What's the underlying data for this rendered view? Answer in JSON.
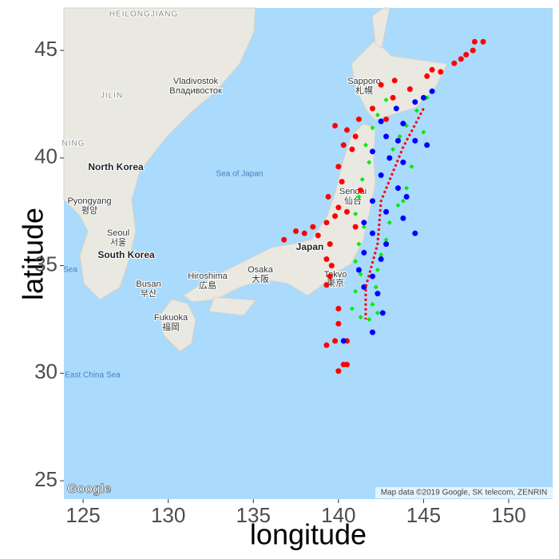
{
  "chart_data": {
    "type": "scatter",
    "xlabel": "longitude",
    "ylabel": "latitude",
    "xlim": [
      123.87,
      152.58
    ],
    "ylim": [
      24.15,
      46.97
    ],
    "xticks": [
      125,
      130,
      135,
      140,
      145,
      150
    ],
    "yticks": [
      25,
      30,
      35,
      40,
      45
    ],
    "series": [
      {
        "color": "#ff0000",
        "marker": "circle",
        "x": [
          148.5,
          148.0,
          147.9,
          147.5,
          147.2,
          146.8,
          146.0,
          145.5,
          145.2,
          144.2,
          143.3,
          142.5,
          143.2,
          142.0,
          141.0,
          139.8,
          140.3,
          140.8,
          140.0,
          140.2,
          139.4,
          140.0,
          139.8,
          139.3,
          138.5,
          138.0,
          137.5,
          136.8,
          138.8,
          139.5,
          139.3,
          139.6,
          139.5,
          139.3,
          140.0,
          140.0,
          139.8,
          139.3,
          140.5,
          140.3,
          140.0,
          140.5,
          141.0,
          140.5,
          141.3,
          142.8,
          140.5,
          141.2
        ],
        "values": [
          45.4,
          45.4,
          45.0,
          44.8,
          44.6,
          44.4,
          44.0,
          44.1,
          43.8,
          43.2,
          43.6,
          43.4,
          42.8,
          42.3,
          41.0,
          41.5,
          40.6,
          40.4,
          39.6,
          38.9,
          38.2,
          37.7,
          37.3,
          37.0,
          36.8,
          36.5,
          36.6,
          36.2,
          36.4,
          36.0,
          35.3,
          35.0,
          34.5,
          34.1,
          33.0,
          32.3,
          31.5,
          31.3,
          31.5,
          30.4,
          30.1,
          30.4,
          36.8,
          37.5,
          38.5,
          41.8,
          41.3,
          41.8
        ]
      },
      {
        "color": "#00ee00",
        "marker": "diamond",
        "x": [
          142.8,
          142.3,
          142.0,
          141.6,
          141.8,
          141.4,
          141.2,
          141.0,
          141.5,
          141.2,
          141.0,
          141.3,
          141.0,
          140.8,
          141.3,
          141.8,
          145.2,
          144.6,
          144.0,
          143.6,
          143.2,
          144.3,
          144.0,
          143.5,
          143.0,
          142.8,
          142.5,
          142.3,
          142.2,
          142.0,
          142.3,
          143.8,
          145.0
        ],
        "values": [
          42.7,
          42.0,
          41.4,
          40.6,
          39.8,
          39.0,
          38.2,
          37.4,
          36.8,
          36.0,
          35.2,
          34.6,
          33.8,
          33.0,
          32.6,
          32.5,
          42.8,
          42.2,
          41.5,
          41.0,
          40.4,
          39.6,
          38.6,
          37.8,
          37.0,
          36.2,
          35.5,
          34.8,
          34.0,
          33.2,
          32.8,
          38.0,
          41.2
        ]
      },
      {
        "color": "#0000ff",
        "marker": "circle",
        "x": [
          145.5,
          145.0,
          144.5,
          143.4,
          142.5,
          143.8,
          142.8,
          143.5,
          144.5,
          145.2,
          142.0,
          143.0,
          143.8,
          142.5,
          143.5,
          144.0,
          142.0,
          142.8,
          143.8,
          144.5,
          141.5,
          142.0,
          142.8,
          141.5,
          142.5,
          141.2,
          142.0,
          141.5,
          142.3,
          140.3,
          142.0,
          142.6
        ],
        "values": [
          43.1,
          42.8,
          42.6,
          42.3,
          41.7,
          41.6,
          41.0,
          40.8,
          40.8,
          40.6,
          40.3,
          40.0,
          39.8,
          39.2,
          38.6,
          38.2,
          38.0,
          37.5,
          37.2,
          36.5,
          37.0,
          36.5,
          36.0,
          35.6,
          35.3,
          34.8,
          34.5,
          34.0,
          33.7,
          31.5,
          31.9,
          32.8
        ]
      },
      {
        "color": "#ff0000",
        "marker": "dotted-line",
        "x": [
          145.0,
          143.8,
          142.5,
          142.3,
          141.6,
          141.6
        ],
        "values": [
          42.3,
          40.5,
          38.0,
          36.0,
          34.0,
          32.5
        ]
      }
    ],
    "map": {
      "labels": [
        "HEILONGJIANG",
        "Vladivostok",
        "Владивосток",
        "JILIN",
        "NING",
        "North Korea",
        "Pyongyang",
        "평양",
        "Seoul",
        "서울",
        "South Korea",
        "Sea of Japan",
        "Sapporo",
        "札幌",
        "Sendai",
        "仙台",
        "Japan",
        "Tokyo",
        "東京",
        "Osaka",
        "大阪",
        "Hiroshima",
        "広島",
        "Busan",
        "부산",
        "Fukuoka",
        "福岡",
        "East China Sea",
        "Sea"
      ],
      "attribution": "Map data ©2019 Google, SK telecom, ZENRIN",
      "logo": "Google"
    }
  }
}
